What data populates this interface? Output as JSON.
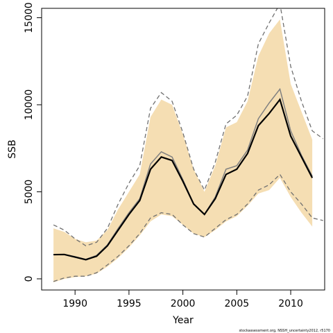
{
  "chart_data": {
    "type": "line",
    "xlabel": "Year",
    "ylabel": "SSB",
    "footnote": "stockassessment.org, NSSH_uncertainty2012, r5170",
    "xlim": [
      1986.9,
      2013.15
    ],
    "ylim": [
      -640,
      15540
    ],
    "xticks": [
      1990,
      1995,
      2000,
      2005,
      2010
    ],
    "yticks": [
      0,
      5000,
      10000,
      15000
    ],
    "x": [
      1988,
      1989,
      1990,
      1991,
      1992,
      1993,
      1994,
      1995,
      1996,
      1997,
      1998,
      1999,
      2000,
      2001,
      2002,
      2003,
      2004,
      2005,
      2006,
      2007,
      2008,
      2009,
      2010,
      2011,
      2012
    ],
    "band": {
      "color": "#f5deb3",
      "lower": [
        -200,
        0,
        100,
        150,
        300,
        700,
        1200,
        1800,
        2500,
        3300,
        3700,
        3600,
        3100,
        2600,
        2400,
        2800,
        3300,
        3600,
        4200,
        4900,
        5100,
        5800,
        4700,
        3800,
        3000
      ],
      "upper": [
        2900,
        2700,
        2300,
        2100,
        2200,
        2800,
        4000,
        5000,
        6000,
        9300,
        10300,
        10000,
        8300,
        6300,
        5000,
        6500,
        8700,
        9000,
        10200,
        12800,
        14100,
        14900,
        11200,
        9600,
        8000
      ]
    },
    "series": [
      {
        "style": "dashed",
        "color": "#707070",
        "x": [
          1988,
          1989,
          1990,
          1991,
          1992,
          1993,
          1994,
          1995,
          1996,
          1997,
          1998,
          1999,
          2000,
          2001,
          2002,
          2003,
          2004,
          2005,
          2006,
          2007,
          2008,
          2009,
          2010,
          2011,
          2012,
          2013
        ],
        "values": [
          3100,
          2800,
          2300,
          1900,
          2100,
          2900,
          4300,
          5500,
          6500,
          9800,
          10700,
          10200,
          8400,
          6300,
          5100,
          6700,
          8900,
          9400,
          10500,
          13500,
          14700,
          15800,
          12200,
          10200,
          8500,
          8050
        ]
      },
      {
        "style": "dashed",
        "color": "#707070",
        "x": [
          1988,
          1989,
          1990,
          1991,
          1992,
          1993,
          1994,
          1995,
          1996,
          1997,
          1998,
          1999,
          2000,
          2001,
          2002,
          2003,
          2004,
          2005,
          2006,
          2007,
          2008,
          2009,
          2010,
          2011,
          2012,
          2013
        ],
        "values": [
          -150,
          50,
          150,
          150,
          350,
          800,
          1300,
          1900,
          2600,
          3500,
          3800,
          3700,
          3100,
          2600,
          2400,
          2900,
          3400,
          3700,
          4300,
          5100,
          5400,
          6000,
          5000,
          4300,
          3500,
          3350
        ]
      },
      {
        "style": "solid",
        "color": "#808080",
        "width": 1.5,
        "values": [
          1400,
          1400,
          1280,
          1120,
          1350,
          1950,
          2900,
          3800,
          4600,
          6600,
          7300,
          7000,
          5700,
          4300,
          3700,
          4700,
          6300,
          6500,
          7400,
          9200,
          10100,
          10900,
          8500,
          7100,
          5900
        ]
      },
      {
        "style": "solid",
        "color": "#000000",
        "width": 2.2,
        "values": [
          1390,
          1400,
          1250,
          1100,
          1300,
          1900,
          2800,
          3700,
          4500,
          6300,
          7000,
          6800,
          5600,
          4300,
          3700,
          4600,
          6000,
          6300,
          7200,
          8800,
          9500,
          10300,
          8200,
          7000,
          5800
        ]
      }
    ]
  }
}
